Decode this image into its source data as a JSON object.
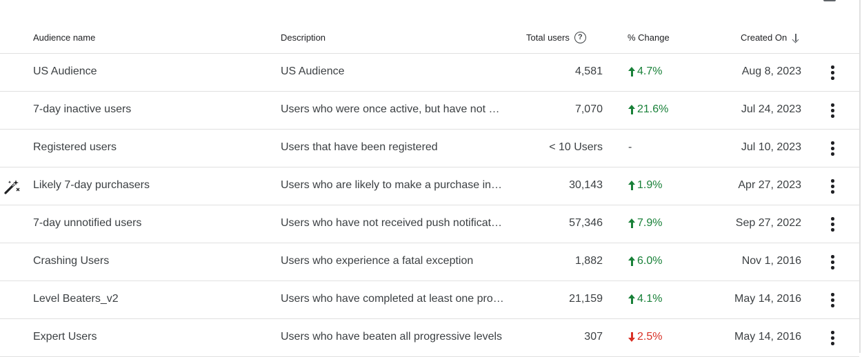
{
  "table": {
    "headers": {
      "name": "Audience name",
      "description": "Description",
      "total": "Total users",
      "change": "% Change",
      "created": "Created On"
    },
    "rows": [
      {
        "name": "US Audience",
        "description": "US Audience",
        "total": "4,581",
        "change": "4.7%",
        "direction": "up",
        "created": "Aug 8, 2023"
      },
      {
        "name": "7-day inactive users",
        "description": "Users who were once active, but have not b…",
        "total": "7,070",
        "change": "21.6%",
        "direction": "up",
        "created": "Jul 24, 2023"
      },
      {
        "name": "Registered users",
        "description": "Users that have been registered",
        "total": "< 10 Users",
        "change": "-",
        "direction": "none",
        "created": "Jul 10, 2023"
      },
      {
        "name": "Likely 7-day purchasers",
        "description": "Users who are likely to make a purchase in …",
        "total": "30,143",
        "change": "1.9%",
        "direction": "up",
        "created": "Apr 27, 2023",
        "icon": "magic-wand-icon"
      },
      {
        "name": "7-day unnotified users",
        "description": "Users who have not received push notificat…",
        "total": "57,346",
        "change": "7.9%",
        "direction": "up",
        "created": "Sep 27, 2022"
      },
      {
        "name": "Crashing Users",
        "description": "Users who experience a fatal exception",
        "total": "1,882",
        "change": "6.0%",
        "direction": "up",
        "created": "Nov 1, 2016"
      },
      {
        "name": "Level Beaters_v2",
        "description": "Users who have completed at least one pro…",
        "total": "21,159",
        "change": "4.1%",
        "direction": "up",
        "created": "May 14, 2016"
      },
      {
        "name": "Expert Users",
        "description": "Users who have beaten all progressive levels",
        "total": "307",
        "change": "2.5%",
        "direction": "down",
        "created": "May 14, 2016"
      }
    ]
  },
  "colors": {
    "up": "#188038",
    "down": "#d93025",
    "divider": "#e0e0e0"
  }
}
